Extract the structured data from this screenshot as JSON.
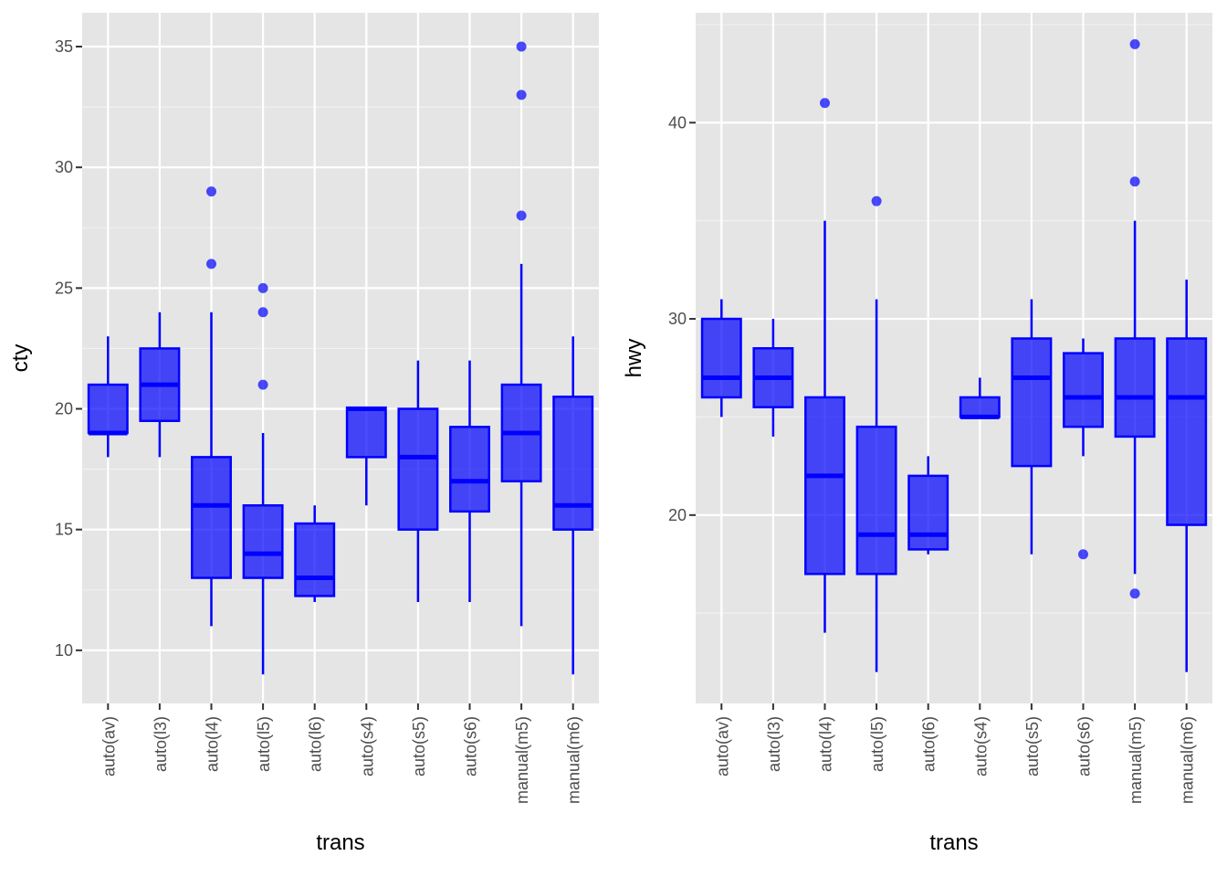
{
  "chart_data": [
    {
      "type": "box",
      "xlabel": "trans",
      "ylabel": "cty",
      "ylim": [
        7.8,
        36.4
      ],
      "yticks": [
        10,
        15,
        20,
        25,
        30,
        35
      ],
      "grid": true,
      "fill_color": "#0000ff",
      "fill_opacity": 0.7,
      "categories": [
        "auto(av)",
        "auto(l3)",
        "auto(l4)",
        "auto(l5)",
        "auto(l6)",
        "auto(s4)",
        "auto(s5)",
        "auto(s6)",
        "manual(m5)",
        "manual(m6)"
      ],
      "boxes": [
        {
          "lo": 18,
          "q1": 19,
          "med": 19,
          "q3": 21,
          "hi": 23,
          "outliers": []
        },
        {
          "lo": 18,
          "q1": 19.5,
          "med": 21,
          "q3": 22.5,
          "hi": 24,
          "outliers": []
        },
        {
          "lo": 11,
          "q1": 13,
          "med": 16,
          "q3": 18,
          "hi": 24,
          "outliers": [
            26,
            29
          ]
        },
        {
          "lo": 9,
          "q1": 13,
          "med": 14,
          "q3": 16,
          "hi": 19,
          "outliers": [
            21,
            24,
            25
          ]
        },
        {
          "lo": 12,
          "q1": 12.25,
          "med": 13,
          "q3": 15.25,
          "hi": 16,
          "outliers": []
        },
        {
          "lo": 16,
          "q1": 18,
          "med": 20,
          "q3": 20.05,
          "hi": 20.05,
          "outliers": []
        },
        {
          "lo": 12,
          "q1": 15,
          "med": 18,
          "q3": 20,
          "hi": 22,
          "outliers": []
        },
        {
          "lo": 12,
          "q1": 15.75,
          "med": 17,
          "q3": 19.25,
          "hi": 22,
          "outliers": []
        },
        {
          "lo": 11,
          "q1": 17,
          "med": 19,
          "q3": 21,
          "hi": 26,
          "outliers": [
            28,
            33,
            35
          ]
        },
        {
          "lo": 9,
          "q1": 15,
          "med": 16,
          "q3": 20.5,
          "hi": 23,
          "outliers": []
        }
      ]
    },
    {
      "type": "box",
      "xlabel": "trans",
      "ylabel": "hwy",
      "ylim": [
        10.4,
        45.6
      ],
      "yticks": [
        20,
        30,
        40
      ],
      "grid": true,
      "fill_color": "#0000ff",
      "fill_opacity": 0.7,
      "categories": [
        "auto(av)",
        "auto(l3)",
        "auto(l4)",
        "auto(l5)",
        "auto(l6)",
        "auto(s4)",
        "auto(s5)",
        "auto(s6)",
        "manual(m5)",
        "manual(m6)"
      ],
      "boxes": [
        {
          "lo": 25,
          "q1": 26,
          "med": 27,
          "q3": 30,
          "hi": 31,
          "outliers": []
        },
        {
          "lo": 24,
          "q1": 25.5,
          "med": 27,
          "q3": 28.5,
          "hi": 30,
          "outliers": []
        },
        {
          "lo": 14,
          "q1": 17,
          "med": 22,
          "q3": 26,
          "hi": 35,
          "outliers": [
            41
          ]
        },
        {
          "lo": 12,
          "q1": 17,
          "med": 19,
          "q3": 24.5,
          "hi": 31,
          "outliers": [
            36
          ]
        },
        {
          "lo": 18,
          "q1": 18.25,
          "med": 19,
          "q3": 22,
          "hi": 23,
          "outliers": []
        },
        {
          "lo": 25,
          "q1": 25,
          "med": 25,
          "q3": 26,
          "hi": 27,
          "outliers": []
        },
        {
          "lo": 18,
          "q1": 22.5,
          "med": 27,
          "q3": 29,
          "hi": 31,
          "outliers": []
        },
        {
          "lo": 23,
          "q1": 24.5,
          "med": 26,
          "q3": 28.25,
          "hi": 29,
          "outliers": [
            18
          ]
        },
        {
          "lo": 17,
          "q1": 24,
          "med": 26,
          "q3": 29,
          "hi": 35,
          "outliers": [
            16,
            37,
            44
          ]
        },
        {
          "lo": 12,
          "q1": 19.5,
          "med": 26,
          "q3": 29,
          "hi": 32,
          "outliers": []
        }
      ]
    }
  ]
}
